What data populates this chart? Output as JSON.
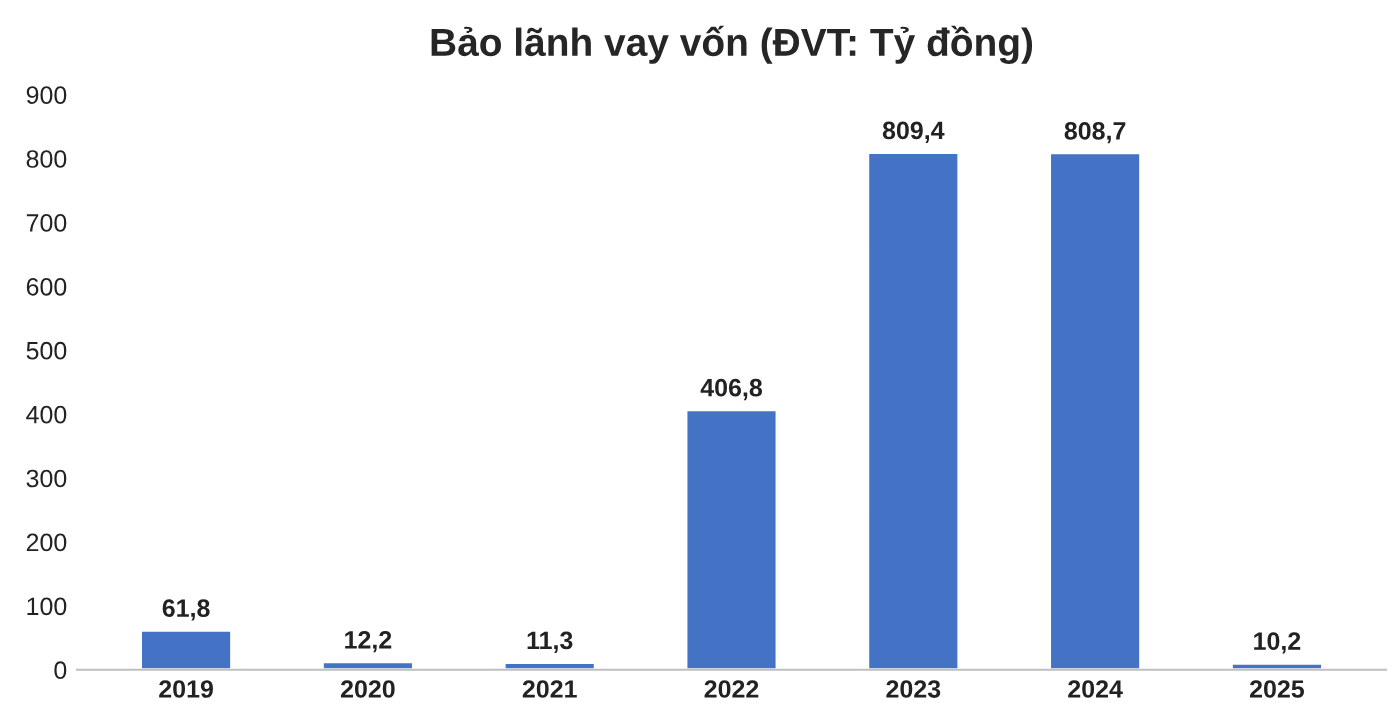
{
  "chart_data": {
    "type": "bar",
    "title": "Bảo lãnh vay vốn (ĐVT: Tỷ đồng)",
    "categories": [
      "2019",
      "2020",
      "2021",
      "2022",
      "2023",
      "2024",
      "2025"
    ],
    "values": [
      61.8,
      12.2,
      11.3,
      406.8,
      809.4,
      808.7,
      10.2
    ],
    "value_labels": [
      "61,8",
      "12,2",
      "11,3",
      "406,8",
      "809,4",
      "808,7",
      "10,2"
    ],
    "color": "#4472c4",
    "ylim": [
      0,
      900
    ],
    "yticks": [
      0,
      100,
      200,
      300,
      400,
      500,
      600,
      700,
      800,
      900
    ],
    "grid": false,
    "legend": false
  }
}
